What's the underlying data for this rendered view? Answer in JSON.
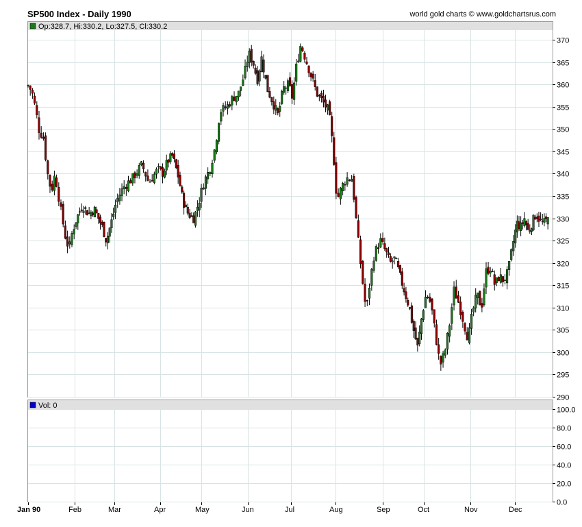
{
  "header": {
    "title": "SP500 Index - Daily 1990",
    "credit": "world gold charts © www.goldchartsrus.com"
  },
  "colors": {
    "up": "#1a7a1a",
    "down": "#8b0000",
    "volume": "#0000cc",
    "grid": "#d8e4e4",
    "legend_bg": "#e0e0e0"
  },
  "price_panel": {
    "legend": "Op:328.7, Hi:330.2, Lo:327.5, Cl:330.2"
  },
  "volume_panel": {
    "legend": "Vol: 0"
  },
  "chart_data": [
    {
      "type": "candlestick",
      "title": "SP500 Index - Daily 1990",
      "x_ticks": [
        "Jan 90",
        "Feb",
        "Mar",
        "Apr",
        "May",
        "Jun",
        "Jul",
        "Aug",
        "Sep",
        "Oct",
        "Nov",
        "Dec"
      ],
      "ylim": [
        290,
        372
      ],
      "y_ticks": [
        290,
        295,
        300,
        305,
        310,
        315,
        320,
        325,
        330,
        335,
        340,
        345,
        350,
        355,
        360,
        365,
        370
      ],
      "grid": true,
      "close_series": [
        {
          "m": 0.0,
          "v": 359.7
        },
        {
          "m": 0.08,
          "v": 358.5
        },
        {
          "m": 0.17,
          "v": 354.0
        },
        {
          "m": 0.23,
          "v": 350.0
        },
        {
          "m": 0.33,
          "v": 348.0
        },
        {
          "m": 0.42,
          "v": 340.0
        },
        {
          "m": 0.5,
          "v": 336.0
        },
        {
          "m": 0.58,
          "v": 340.0
        },
        {
          "m": 0.7,
          "v": 332.0
        },
        {
          "m": 0.8,
          "v": 326.0
        },
        {
          "m": 0.88,
          "v": 323.0
        },
        {
          "m": 0.95,
          "v": 327.0
        },
        {
          "m": 1.05,
          "v": 330.0
        },
        {
          "m": 1.2,
          "v": 333.0
        },
        {
          "m": 1.35,
          "v": 331.0
        },
        {
          "m": 1.5,
          "v": 332.0
        },
        {
          "m": 1.7,
          "v": 328.0
        },
        {
          "m": 1.8,
          "v": 325.0
        },
        {
          "m": 1.95,
          "v": 330.0
        },
        {
          "m": 2.05,
          "v": 334.0
        },
        {
          "m": 2.2,
          "v": 337.0
        },
        {
          "m": 2.4,
          "v": 339.0
        },
        {
          "m": 2.6,
          "v": 342.0
        },
        {
          "m": 2.75,
          "v": 338.0
        },
        {
          "m": 2.95,
          "v": 341.0
        },
        {
          "m": 3.05,
          "v": 340.0
        },
        {
          "m": 3.2,
          "v": 343.0
        },
        {
          "m": 3.3,
          "v": 344.0
        },
        {
          "m": 3.45,
          "v": 339.0
        },
        {
          "m": 3.55,
          "v": 334.0
        },
        {
          "m": 3.68,
          "v": 331.0
        },
        {
          "m": 3.82,
          "v": 330.0
        },
        {
          "m": 3.95,
          "v": 334.0
        },
        {
          "m": 4.05,
          "v": 338.0
        },
        {
          "m": 4.18,
          "v": 341.0
        },
        {
          "m": 4.3,
          "v": 346.0
        },
        {
          "m": 4.4,
          "v": 354.0
        },
        {
          "m": 4.55,
          "v": 355.0
        },
        {
          "m": 4.68,
          "v": 357.0
        },
        {
          "m": 4.8,
          "v": 358.0
        },
        {
          "m": 4.92,
          "v": 362.0
        },
        {
          "m": 5.02,
          "v": 367.0
        },
        {
          "m": 5.12,
          "v": 365.0
        },
        {
          "m": 5.22,
          "v": 361.0
        },
        {
          "m": 5.32,
          "v": 366.0
        },
        {
          "m": 5.45,
          "v": 359.0
        },
        {
          "m": 5.58,
          "v": 356.0
        },
        {
          "m": 5.7,
          "v": 353.0
        },
        {
          "m": 5.82,
          "v": 359.0
        },
        {
          "m": 5.95,
          "v": 360.0
        },
        {
          "m": 6.03,
          "v": 357.0
        },
        {
          "m": 6.12,
          "v": 364.0
        },
        {
          "m": 6.22,
          "v": 369.0
        },
        {
          "m": 6.32,
          "v": 366.0
        },
        {
          "m": 6.45,
          "v": 362.0
        },
        {
          "m": 6.58,
          "v": 358.0
        },
        {
          "m": 6.72,
          "v": 356.0
        },
        {
          "m": 6.85,
          "v": 354.0
        },
        {
          "m": 6.95,
          "v": 345.0
        },
        {
          "m": 7.03,
          "v": 334.0
        },
        {
          "m": 7.13,
          "v": 337.0
        },
        {
          "m": 7.23,
          "v": 339.0
        },
        {
          "m": 7.35,
          "v": 339.0
        },
        {
          "m": 7.48,
          "v": 325.0
        },
        {
          "m": 7.55,
          "v": 318.0
        },
        {
          "m": 7.65,
          "v": 309.0
        },
        {
          "m": 7.72,
          "v": 315.0
        },
        {
          "m": 7.82,
          "v": 322.0
        },
        {
          "m": 7.95,
          "v": 325.0
        },
        {
          "m": 8.05,
          "v": 323.0
        },
        {
          "m": 8.18,
          "v": 320.0
        },
        {
          "m": 8.3,
          "v": 321.0
        },
        {
          "m": 8.42,
          "v": 317.0
        },
        {
          "m": 8.55,
          "v": 313.0
        },
        {
          "m": 8.65,
          "v": 310.0
        },
        {
          "m": 8.75,
          "v": 305.0
        },
        {
          "m": 8.85,
          "v": 301.0
        },
        {
          "m": 8.95,
          "v": 308.0
        },
        {
          "m": 9.05,
          "v": 313.0
        },
        {
          "m": 9.15,
          "v": 311.0
        },
        {
          "m": 9.25,
          "v": 304.0
        },
        {
          "m": 9.35,
          "v": 297.0
        },
        {
          "m": 9.45,
          "v": 300.0
        },
        {
          "m": 9.55,
          "v": 306.0
        },
        {
          "m": 9.65,
          "v": 314.0
        },
        {
          "m": 9.75,
          "v": 311.0
        },
        {
          "m": 9.85,
          "v": 307.0
        },
        {
          "m": 9.95,
          "v": 303.0
        },
        {
          "m": 10.05,
          "v": 309.0
        },
        {
          "m": 10.15,
          "v": 313.0
        },
        {
          "m": 10.25,
          "v": 310.0
        },
        {
          "m": 10.35,
          "v": 318.0
        },
        {
          "m": 10.45,
          "v": 319.0
        },
        {
          "m": 10.55,
          "v": 315.0
        },
        {
          "m": 10.65,
          "v": 317.0
        },
        {
          "m": 10.75,
          "v": 316.0
        },
        {
          "m": 10.85,
          "v": 318.0
        },
        {
          "m": 10.95,
          "v": 324.0
        },
        {
          "m": 11.05,
          "v": 329.0
        },
        {
          "m": 11.15,
          "v": 328.0
        },
        {
          "m": 11.25,
          "v": 330.0
        },
        {
          "m": 11.35,
          "v": 327.0
        },
        {
          "m": 11.45,
          "v": 329.0
        },
        {
          "m": 11.55,
          "v": 331.0
        },
        {
          "m": 11.62,
          "v": 330.0
        },
        {
          "m": 11.7,
          "v": 329.0
        },
        {
          "m": 11.78,
          "v": 329.0
        },
        {
          "m": 11.86,
          "v": 330.2
        }
      ]
    },
    {
      "type": "bar",
      "title": "",
      "series": [
        {
          "name": "Vol",
          "values": [
            0
          ]
        }
      ],
      "ylim": [
        0,
        100
      ],
      "y_ticks": [
        "0.0",
        "20.0",
        "40.0",
        "60.0",
        "80.0",
        "100.0"
      ],
      "grid": true
    }
  ]
}
